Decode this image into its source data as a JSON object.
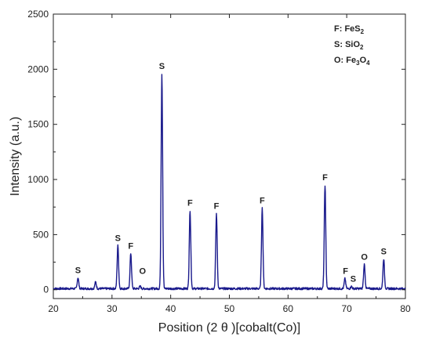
{
  "chart_data": {
    "type": "line",
    "xlabel": "Position (2 θ )[cobalt(Co)]",
    "ylabel": "Intensity (a.u.)",
    "xlim": [
      20,
      80
    ],
    "ylim": [
      -80,
      2500
    ],
    "x_ticks": [
      20,
      30,
      40,
      50,
      60,
      70,
      80
    ],
    "y_ticks": [
      0,
      500,
      1000,
      1500,
      2000,
      2500
    ],
    "grid": false,
    "legend_position": "top-right",
    "line_color": "#1a1a8c",
    "series": [
      {
        "name": "",
        "baseline": 10,
        "noise_amplitude": 20,
        "peaks": [
          {
            "x": 24.2,
            "y": 110
          },
          {
            "x": 27.2,
            "y": 70
          },
          {
            "x": 31.0,
            "y": 400
          },
          {
            "x": 33.2,
            "y": 330
          },
          {
            "x": 34.8,
            "y": 30
          },
          {
            "x": 38.5,
            "y": 1960
          },
          {
            "x": 43.3,
            "y": 720
          },
          {
            "x": 47.8,
            "y": 690
          },
          {
            "x": 55.6,
            "y": 740
          },
          {
            "x": 66.3,
            "y": 950
          },
          {
            "x": 69.7,
            "y": 100
          },
          {
            "x": 70.8,
            "y": 30
          },
          {
            "x": 73.0,
            "y": 230
          },
          {
            "x": 76.3,
            "y": 280
          }
        ]
      }
    ],
    "annotations": [
      {
        "text": "S",
        "x": 24.2,
        "y": 110
      },
      {
        "text": "S",
        "x": 31.0,
        "y": 400
      },
      {
        "text": "F",
        "x": 33.2,
        "y": 330
      },
      {
        "text": "O",
        "x": 35.2,
        "y": 100
      },
      {
        "text": "S",
        "x": 38.5,
        "y": 1960
      },
      {
        "text": "F",
        "x": 43.3,
        "y": 720
      },
      {
        "text": "F",
        "x": 47.8,
        "y": 690
      },
      {
        "text": "F",
        "x": 55.6,
        "y": 740
      },
      {
        "text": "F",
        "x": 66.3,
        "y": 950
      },
      {
        "text": "F",
        "x": 69.8,
        "y": 100
      },
      {
        "text": "S",
        "x": 71.1,
        "y": 30
      },
      {
        "text": "O",
        "x": 73.0,
        "y": 230
      },
      {
        "text": "S",
        "x": 76.3,
        "y": 280
      }
    ],
    "legend": [
      {
        "prefix": "F: ",
        "formula": "FeS",
        "sub": "2"
      },
      {
        "prefix": "S: ",
        "formula": "SiO",
        "sub": "2"
      },
      {
        "prefix": "O: ",
        "formula": "Fe",
        "sub": "3",
        "formula2": "O",
        "sub2": "4"
      }
    ]
  }
}
